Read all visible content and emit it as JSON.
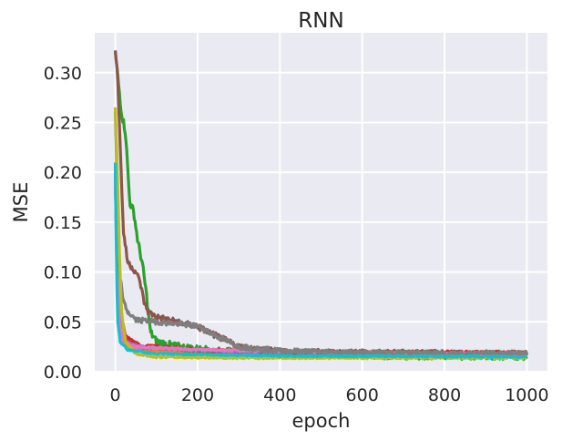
{
  "chart_data": {
    "type": "line",
    "title": "RNN",
    "xlabel": "epoch",
    "ylabel": "MSE",
    "xlim": [
      -50,
      1050
    ],
    "ylim": [
      0,
      0.34
    ],
    "grid": true,
    "background": "#eaeaf2",
    "x_ticks": [
      0,
      200,
      400,
      600,
      800,
      1000
    ],
    "x_tick_labels": [
      "0",
      "200",
      "400",
      "600",
      "800",
      "1000"
    ],
    "y_ticks": [
      0.0,
      0.05,
      0.1,
      0.15,
      0.2,
      0.25,
      0.3
    ],
    "y_tick_labels": [
      "0.00",
      "0.05",
      "0.10",
      "0.15",
      "0.20",
      "0.25",
      "0.30"
    ],
    "series": [
      {
        "color": "#1f77b4",
        "noise": 0.0008,
        "points": [
          [
            0,
            0.19
          ],
          [
            4,
            0.12
          ],
          [
            8,
            0.06
          ],
          [
            15,
            0.035
          ],
          [
            30,
            0.028
          ],
          [
            60,
            0.024
          ],
          [
            150,
            0.021
          ],
          [
            400,
            0.019
          ],
          [
            700,
            0.018
          ],
          [
            1000,
            0.018
          ]
        ]
      },
      {
        "color": "#ff7f0e",
        "noise": 0.0008,
        "points": [
          [
            0,
            0.2
          ],
          [
            4,
            0.1
          ],
          [
            10,
            0.05
          ],
          [
            20,
            0.028
          ],
          [
            50,
            0.022
          ],
          [
            150,
            0.019
          ],
          [
            500,
            0.017
          ],
          [
            1000,
            0.016
          ]
        ]
      },
      {
        "color": "#2ca02c",
        "noise": 0.004,
        "points": [
          [
            0,
            0.32
          ],
          [
            5,
            0.3
          ],
          [
            15,
            0.26
          ],
          [
            25,
            0.24
          ],
          [
            35,
            0.17
          ],
          [
            45,
            0.16
          ],
          [
            55,
            0.13
          ],
          [
            65,
            0.11
          ],
          [
            75,
            0.08
          ],
          [
            85,
            0.04
          ],
          [
            100,
            0.03
          ],
          [
            150,
            0.025
          ],
          [
            250,
            0.02
          ],
          [
            500,
            0.017
          ],
          [
            1000,
            0.016
          ]
        ]
      },
      {
        "color": "#d62728",
        "noise": 0.0015,
        "points": [
          [
            0,
            0.21
          ],
          [
            5,
            0.12
          ],
          [
            12,
            0.06
          ],
          [
            25,
            0.035
          ],
          [
            60,
            0.026
          ],
          [
            200,
            0.022
          ],
          [
            500,
            0.02
          ],
          [
            1000,
            0.019
          ]
        ]
      },
      {
        "color": "#9467bd",
        "noise": 0.0008,
        "points": [
          [
            0,
            0.2
          ],
          [
            4,
            0.11
          ],
          [
            10,
            0.055
          ],
          [
            25,
            0.03
          ],
          [
            70,
            0.024
          ],
          [
            300,
            0.02
          ],
          [
            1000,
            0.018
          ]
        ]
      },
      {
        "color": "#8c564b",
        "noise": 0.003,
        "points": [
          [
            0,
            0.325
          ],
          [
            5,
            0.3
          ],
          [
            10,
            0.25
          ],
          [
            15,
            0.19
          ],
          [
            20,
            0.14
          ],
          [
            30,
            0.11
          ],
          [
            40,
            0.105
          ],
          [
            50,
            0.1
          ],
          [
            60,
            0.09
          ],
          [
            70,
            0.07
          ],
          [
            80,
            0.06
          ],
          [
            100,
            0.055
          ],
          [
            150,
            0.05
          ],
          [
            200,
            0.045
          ],
          [
            250,
            0.035
          ],
          [
            300,
            0.025
          ],
          [
            400,
            0.02
          ],
          [
            600,
            0.019
          ],
          [
            1000,
            0.018
          ]
        ]
      },
      {
        "color": "#e377c2",
        "noise": 0.001,
        "points": [
          [
            0,
            0.19
          ],
          [
            4,
            0.11
          ],
          [
            10,
            0.05
          ],
          [
            20,
            0.03
          ],
          [
            50,
            0.025
          ],
          [
            200,
            0.022
          ],
          [
            600,
            0.019
          ],
          [
            1000,
            0.018
          ]
        ]
      },
      {
        "color": "#7f7f7f",
        "noise": 0.0025,
        "points": [
          [
            0,
            0.26
          ],
          [
            5,
            0.18
          ],
          [
            10,
            0.1
          ],
          [
            20,
            0.07
          ],
          [
            30,
            0.06
          ],
          [
            50,
            0.052
          ],
          [
            100,
            0.05
          ],
          [
            150,
            0.048
          ],
          [
            200,
            0.046
          ],
          [
            250,
            0.035
          ],
          [
            300,
            0.025
          ],
          [
            400,
            0.021
          ],
          [
            600,
            0.019
          ],
          [
            1000,
            0.018
          ]
        ]
      },
      {
        "color": "#bcbd22",
        "noise": 0.001,
        "points": [
          [
            0,
            0.265
          ],
          [
            5,
            0.2
          ],
          [
            10,
            0.12
          ],
          [
            15,
            0.06
          ],
          [
            25,
            0.03
          ],
          [
            50,
            0.018
          ],
          [
            100,
            0.015
          ],
          [
            300,
            0.014
          ],
          [
            1000,
            0.014
          ]
        ]
      },
      {
        "color": "#17becf",
        "noise": 0.0008,
        "points": [
          [
            0,
            0.21
          ],
          [
            3,
            0.1
          ],
          [
            6,
            0.05
          ],
          [
            12,
            0.03
          ],
          [
            30,
            0.022
          ],
          [
            100,
            0.018
          ],
          [
            400,
            0.016
          ],
          [
            1000,
            0.015
          ]
        ]
      }
    ]
  }
}
